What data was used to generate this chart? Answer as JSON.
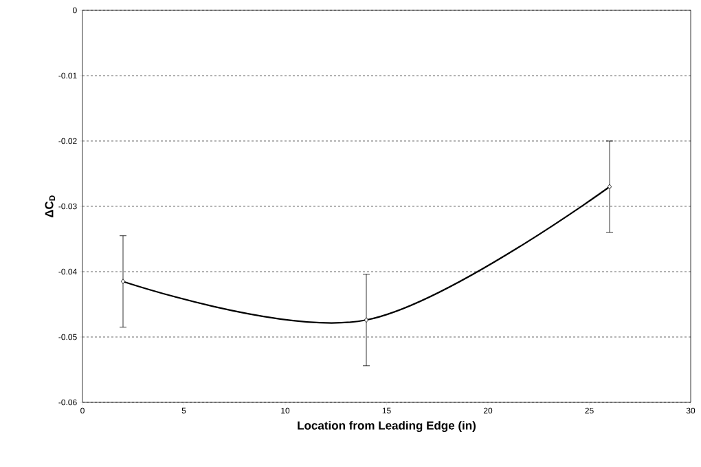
{
  "chart_data": {
    "type": "line",
    "xlabel": "Location from Leading Edge (in)",
    "ylabel": "ΔC$_{D}$",
    "x": [
      2,
      14,
      26
    ],
    "series": [
      {
        "color": "#000000",
        "values": [
          -0.0415,
          -0.0474,
          -0.027
        ],
        "errors": [
          0.007,
          0.007,
          0.007
        ]
      }
    ],
    "xlim": [
      0,
      30
    ],
    "ylim": [
      -0.06,
      0
    ],
    "xticks": [
      0,
      5,
      10,
      15,
      20,
      25,
      30
    ],
    "yticks": [
      -0.06,
      -0.05,
      -0.04,
      -0.03,
      -0.02,
      -0.01,
      0
    ],
    "grid": "y",
    "marker": "diamond",
    "line_style": "solid"
  }
}
